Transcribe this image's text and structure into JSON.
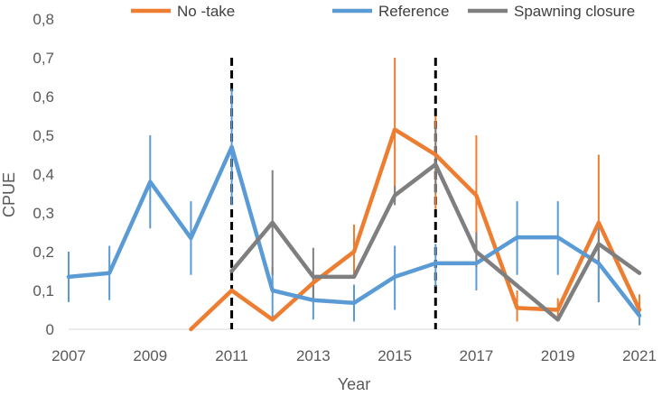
{
  "chart_data": {
    "type": "line",
    "xlabel": "Year",
    "ylabel": "CPUE",
    "xlim": [
      2007,
      2021
    ],
    "ylim": [
      0,
      0.8
    ],
    "x_ticks": [
      "2007",
      "2009",
      "2011",
      "2013",
      "2015",
      "2017",
      "2019",
      "2021"
    ],
    "y_ticks": [
      "0",
      "0,1",
      "0,2",
      "0,3",
      "0,4",
      "0,5",
      "0,6",
      "0,7",
      "0,8"
    ],
    "grid": false,
    "legend_position": "top",
    "series": [
      {
        "name": "No -take",
        "color": "#ED7D31",
        "x": [
          2010,
          2011,
          2012,
          2013,
          2014,
          2015,
          2016,
          2017,
          2018,
          2019,
          2020,
          2021
        ],
        "y": [
          0.0,
          0.1,
          0.025,
          0.12,
          0.2,
          0.515,
          0.45,
          0.345,
          0.055,
          0.05,
          0.275,
          0.05
        ],
        "error_low": [
          null,
          null,
          null,
          null,
          0.14,
          0.33,
          0.31,
          0.2,
          0.02,
          0.02,
          0.07,
          0.03
        ],
        "error_high": [
          null,
          null,
          null,
          null,
          0.27,
          0.7,
          0.55,
          0.5,
          0.1,
          0.08,
          0.45,
          0.09
        ]
      },
      {
        "name": "Reference",
        "color": "#5B9BD5",
        "x": [
          2007,
          2008,
          2009,
          2010,
          2011,
          2012,
          2013,
          2014,
          2015,
          2016,
          2017,
          2018,
          2019,
          2020,
          2021
        ],
        "y": [
          0.135,
          0.145,
          0.38,
          0.235,
          0.47,
          0.1,
          0.075,
          0.068,
          0.135,
          0.17,
          0.17,
          0.237,
          0.237,
          0.17,
          0.035
        ],
        "error_low": [
          0.07,
          0.075,
          0.26,
          0.14,
          0.32,
          0.03,
          0.025,
          0.02,
          0.05,
          0.11,
          0.1,
          0.14,
          0.14,
          0.07,
          0.01
        ],
        "error_high": [
          0.2,
          0.215,
          0.5,
          0.33,
          0.62,
          0.16,
          0.13,
          0.115,
          0.215,
          0.22,
          0.24,
          0.33,
          0.33,
          0.27,
          0.06
        ]
      },
      {
        "name": "Spawning closure",
        "color": "#7F7F7F",
        "x": [
          2011,
          2012,
          2013,
          2014,
          2015,
          2016,
          2017,
          2019,
          2020,
          2021
        ],
        "y": [
          0.15,
          0.275,
          0.135,
          0.135,
          0.345,
          0.425,
          0.2,
          0.025,
          0.22,
          0.145
        ],
        "error_low": [
          null,
          0.14,
          0.07,
          null,
          0.32,
          0.35,
          0.16,
          null,
          0.17,
          null
        ],
        "error_high": [
          null,
          0.41,
          0.21,
          null,
          0.37,
          0.52,
          0.25,
          null,
          0.25,
          null
        ]
      }
    ],
    "vertical_markers": [
      {
        "x": 2011,
        "y_top": 0.7,
        "style": "dashed",
        "color": "#000000"
      },
      {
        "x": 2016,
        "y_top": 0.7,
        "style": "dashed",
        "color": "#000000"
      }
    ]
  }
}
